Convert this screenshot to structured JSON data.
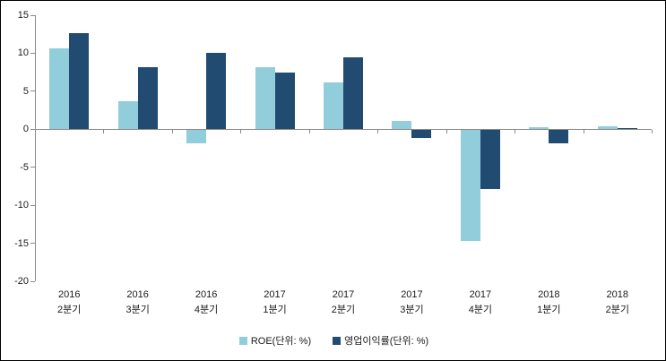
{
  "chart_data": {
    "type": "bar",
    "title": "",
    "xlabel": "",
    "ylabel": "",
    "categories": [
      "2016 2분기",
      "2016 3분기",
      "2016 4분기",
      "2017 1분기",
      "2017 2분기",
      "2017 3분기",
      "2017 4분기",
      "2018 1분기",
      "2018 2분기"
    ],
    "series": [
      {
        "key": "roe",
        "name": "ROE(단위: %)",
        "color": "#92CDDC",
        "values": [
          10.6,
          3.7,
          -1.9,
          8.2,
          6.2,
          1.1,
          -14.7,
          0.3,
          0.4
        ]
      },
      {
        "key": "opm",
        "name": "영업이익률(단위: %)",
        "color": "#214B70",
        "values": [
          12.6,
          8.2,
          10.1,
          7.4,
          9.5,
          -1.1,
          -7.9,
          -1.9,
          0.2
        ]
      }
    ],
    "ylim": [
      -20,
      15
    ],
    "y_ticks": [
      15,
      10,
      5,
      0,
      -5,
      -10,
      -15,
      -20
    ],
    "grid": false,
    "legend_position": "bottom"
  },
  "colors": {
    "background": "#FFFFFF",
    "border": "#000000",
    "axis": "#8A8A8A",
    "tick_text": "#1A1A1A"
  }
}
